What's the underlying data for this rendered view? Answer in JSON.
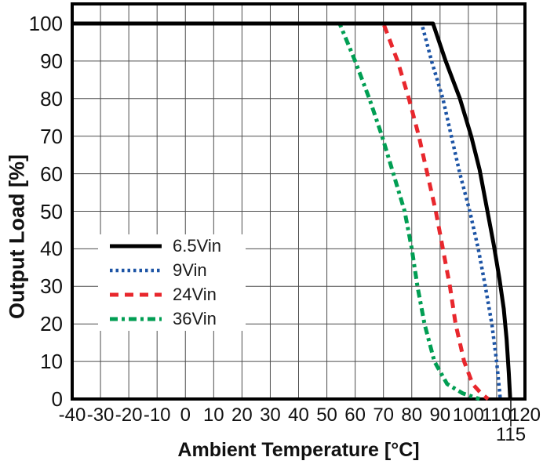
{
  "chart_data": {
    "type": "line",
    "title": "",
    "xlabel": "Ambient Temperature [°C]",
    "ylabel": "Output Load [%]",
    "xlim": [
      -40,
      120
    ],
    "ylim": [
      0,
      105
    ],
    "grid": true,
    "x_ticks": [
      -40,
      -30,
      -20,
      -10,
      0,
      10,
      20,
      30,
      40,
      50,
      60,
      70,
      80,
      90,
      100,
      110,
      120
    ],
    "extra_x_tick": 115,
    "y_ticks": [
      0,
      10,
      20,
      30,
      40,
      50,
      60,
      70,
      80,
      90,
      100
    ],
    "legend_position": "lower-left-inside",
    "layout": {
      "background": "#ffffff",
      "grid_color": "#4d4d4d",
      "frame_color": "#000000",
      "text_color": "#111111"
    },
    "series": [
      {
        "name": "6.5Vin",
        "color": "#000000",
        "style": "solid",
        "width": 5,
        "dash": "",
        "points": [
          [
            -40,
            100
          ],
          [
            87.5,
            100
          ],
          [
            92,
            90
          ],
          [
            97,
            80
          ],
          [
            101,
            70
          ],
          [
            104,
            61
          ],
          [
            106.5,
            51
          ],
          [
            109,
            41
          ],
          [
            111,
            32
          ],
          [
            112.5,
            24
          ],
          [
            113.5,
            16
          ],
          [
            114.3,
            7
          ],
          [
            114.8,
            0
          ]
        ]
      },
      {
        "name": "9Vin",
        "color": "#1d54a5",
        "style": "dotted",
        "width": 4.5,
        "dash": "3.5 4",
        "points": [
          [
            -40,
            100
          ],
          [
            83.5,
            100
          ],
          [
            87,
            90
          ],
          [
            91,
            80
          ],
          [
            94,
            70
          ],
          [
            97,
            60
          ],
          [
            100.5,
            50
          ],
          [
            103.5,
            40
          ],
          [
            106,
            30
          ],
          [
            108.3,
            20
          ],
          [
            110,
            10
          ],
          [
            111.3,
            0
          ]
        ]
      },
      {
        "name": "24Vin",
        "color": "#e8272d",
        "style": "dashed",
        "width": 5,
        "dash": "11 8",
        "points": [
          [
            -40,
            100
          ],
          [
            70,
            100
          ],
          [
            75,
            90
          ],
          [
            79,
            80
          ],
          [
            82.5,
            70
          ],
          [
            85.5,
            60
          ],
          [
            88.5,
            50
          ],
          [
            91,
            40
          ],
          [
            93.5,
            30
          ],
          [
            95.5,
            20
          ],
          [
            98.5,
            10
          ],
          [
            101.5,
            4
          ],
          [
            104.5,
            1.5
          ],
          [
            107,
            0
          ]
        ]
      },
      {
        "name": "36Vin",
        "color": "#019e53",
        "style": "dash-dot",
        "width": 5,
        "dash": "10 5 4 5",
        "points": [
          [
            -40,
            100
          ],
          [
            54.5,
            100
          ],
          [
            60,
            90
          ],
          [
            65,
            80
          ],
          [
            69.5,
            70
          ],
          [
            73.5,
            60
          ],
          [
            77.5,
            50
          ],
          [
            80,
            40
          ],
          [
            82,
            30
          ],
          [
            84.5,
            20
          ],
          [
            88,
            10
          ],
          [
            92.5,
            4
          ],
          [
            98,
            1.5
          ],
          [
            104,
            0
          ]
        ]
      }
    ]
  },
  "legend": {
    "items": [
      {
        "label": "6.5Vin"
      },
      {
        "label": "9Vin"
      },
      {
        "label": "24Vin"
      },
      {
        "label": "36Vin"
      }
    ]
  }
}
